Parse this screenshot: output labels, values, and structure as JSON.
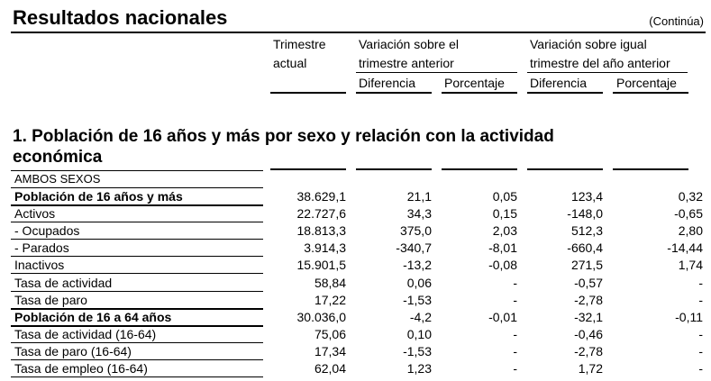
{
  "page": {
    "title": "Resultados nacionales",
    "continuation": "(Continúa)"
  },
  "header": {
    "col_trimestre_l1": "Trimestre",
    "col_trimestre_l2": "actual",
    "col_var_ant_l1": "Variación sobre el",
    "col_var_ant_l2": "trimestre anterior",
    "col_var_igual_l1": "Variación sobre igual",
    "col_var_igual_l2": "trimestre del año anterior",
    "sub_diferencia_1": "Diferencia",
    "sub_porcentaje_1": "Porcentaje",
    "sub_diferencia_2": "Diferencia",
    "sub_porcentaje_2": "Porcentaje"
  },
  "section": {
    "title": "1. Población de 16 años y más por sexo y relación con la actividad económica",
    "group_label": "AMBOS SEXOS"
  },
  "rows": [
    {
      "label": "Población de 16 años y más",
      "bold": true,
      "v": [
        "38.629,1",
        "21,1",
        "0,05",
        "123,4",
        "0,32"
      ]
    },
    {
      "label": "Activos",
      "bold": false,
      "v": [
        "22.727,6",
        "34,3",
        "0,15",
        "-148,0",
        "-0,65"
      ]
    },
    {
      "label": "- Ocupados",
      "bold": false,
      "v": [
        "18.813,3",
        "375,0",
        "2,03",
        "512,3",
        "2,80"
      ]
    },
    {
      "label": "- Parados",
      "bold": false,
      "v": [
        "3.914,3",
        "-340,7",
        "-8,01",
        "-660,4",
        "-14,44"
      ]
    },
    {
      "label": "Inactivos",
      "bold": false,
      "v": [
        "15.901,5",
        "-13,2",
        "-0,08",
        "271,5",
        "1,74"
      ]
    },
    {
      "label": "Tasa de actividad",
      "bold": false,
      "v": [
        "58,84",
        "0,06",
        "-",
        "-0,57",
        "-"
      ]
    },
    {
      "label": "Tasa de paro",
      "bold": false,
      "v": [
        "17,22",
        "-1,53",
        "-",
        "-2,78",
        "-"
      ]
    },
    {
      "label": "Población de 16 a 64 años",
      "bold": true,
      "v": [
        "30.036,0",
        "-4,2",
        "-0,01",
        "-32,1",
        "-0,11"
      ]
    },
    {
      "label": "Tasa de actividad (16-64)",
      "bold": false,
      "v": [
        "75,06",
        "0,10",
        "-",
        "-0,46",
        "-"
      ]
    },
    {
      "label": "Tasa de paro (16-64)",
      "bold": false,
      "v": [
        "17,34",
        "-1,53",
        "-",
        "-2,78",
        "-"
      ]
    },
    {
      "label": "Tasa de empleo (16-64)",
      "bold": false,
      "v": [
        "62,04",
        "1,23",
        "-",
        "1,72",
        "-"
      ]
    }
  ]
}
